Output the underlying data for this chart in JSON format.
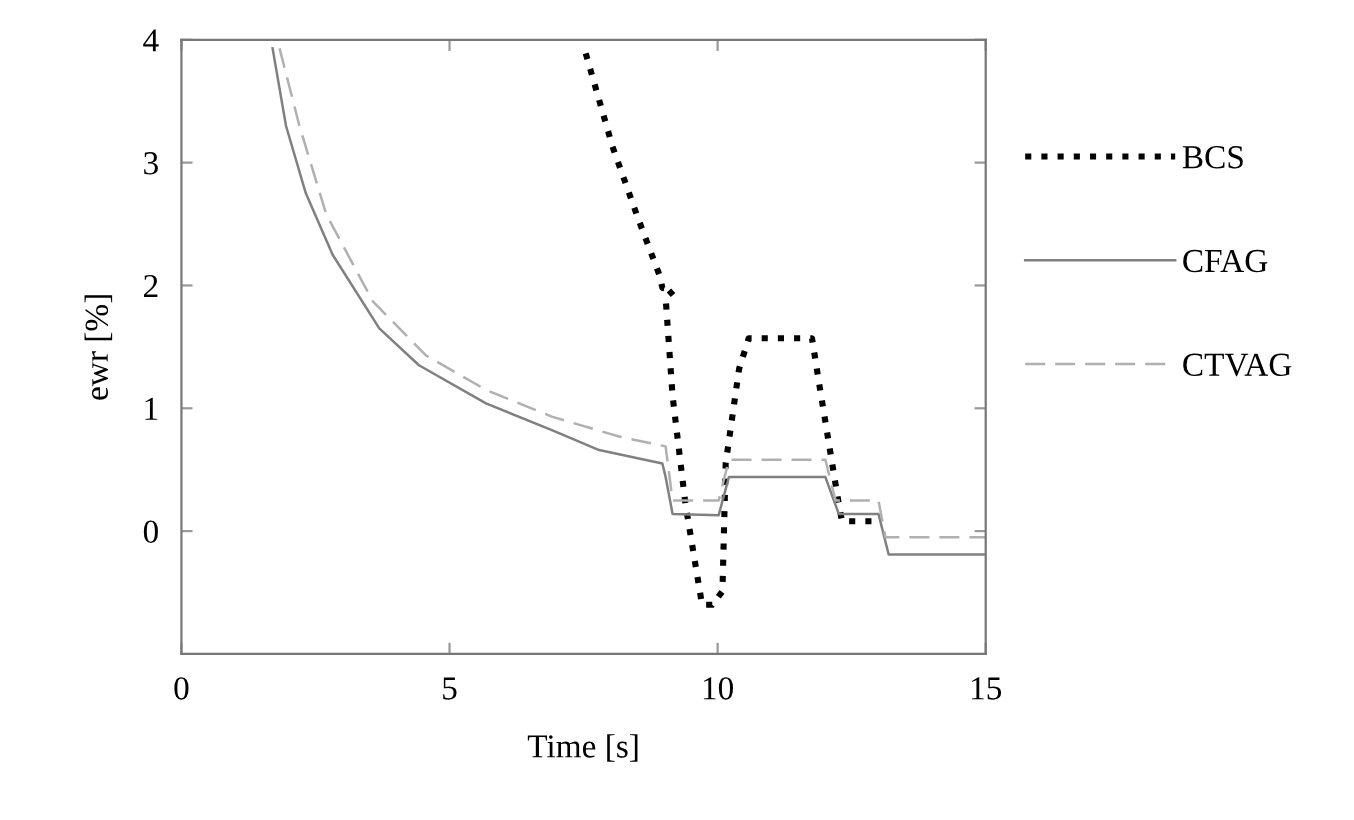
{
  "chart_data": {
    "type": "line",
    "xlabel": "Time [s]",
    "ylabel": "ewr [%]",
    "xlim": [
      0,
      15
    ],
    "ylim": [
      -1,
      4
    ],
    "xticks": [
      0,
      5,
      10,
      15
    ],
    "yticks": [
      0,
      1,
      2,
      3,
      4
    ],
    "grid": false,
    "legend": "right",
    "marker": "none",
    "series": [
      {
        "name": "BCS",
        "color": "#000000",
        "line_style": "dotted",
        "x": [
          7.54,
          8.04,
          8.53,
          8.91,
          8.97,
          9.18,
          9.03,
          9.16,
          9.4,
          9.71,
          9.9,
          10.09,
          10.15,
          10.4,
          10.58,
          11.76,
          11.89,
          12.26,
          12.32,
          12.88
        ],
        "values": [
          3.89,
          3.13,
          2.53,
          2.09,
          1.98,
          1.96,
          1.9,
          1.1,
          0.22,
          -0.6,
          -0.6,
          -0.49,
          0.55,
          1.32,
          1.57,
          1.57,
          1.21,
          0.22,
          0.08,
          0.08
        ]
      },
      {
        "name": "CFAG",
        "color": "#808080",
        "line_style": "solid",
        "x": [
          1.7,
          1.95,
          2.32,
          2.82,
          3.69,
          4.43,
          5.68,
          6.92,
          7.79,
          8.97,
          9.03,
          9.16,
          10.02,
          10.21,
          12.01,
          12.26,
          13.0,
          13.19,
          15.0
        ],
        "values": [
          3.93,
          3.3,
          2.75,
          2.25,
          1.65,
          1.35,
          1.04,
          0.82,
          0.66,
          0.55,
          0.44,
          0.14,
          0.13,
          0.44,
          0.44,
          0.14,
          0.14,
          -0.19,
          -0.19
        ]
      },
      {
        "name": "CTVAG",
        "color": "#b0b0b0",
        "line_style": "dashed",
        "x": [
          1.83,
          2.2,
          2.7,
          3.57,
          4.56,
          5.68,
          6.92,
          8.16,
          9.03,
          9.16,
          10.02,
          10.21,
          12.01,
          12.2,
          13.0,
          13.13,
          15.0
        ],
        "values": [
          3.93,
          3.3,
          2.58,
          1.87,
          1.43,
          1.15,
          0.93,
          0.77,
          0.69,
          0.25,
          0.25,
          0.58,
          0.58,
          0.25,
          0.25,
          -0.05,
          -0.05
        ]
      }
    ]
  }
}
